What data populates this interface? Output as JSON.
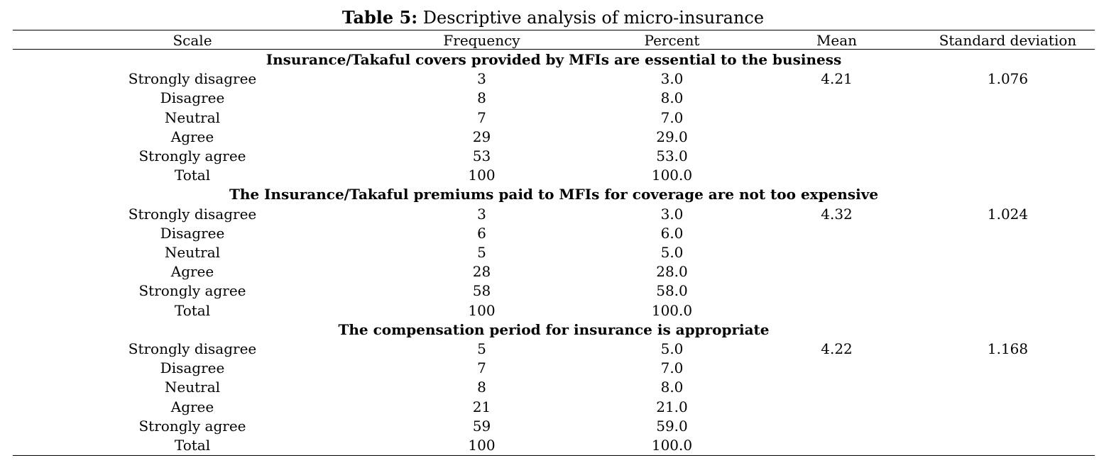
{
  "caption": {
    "label": "Table 5:",
    "text": "Descriptive analysis of micro-insurance"
  },
  "columns": [
    "Scale",
    "Frequency",
    "Percent",
    "Mean",
    "Standard deviation"
  ],
  "sections": [
    {
      "title": "Insurance/Takaful covers provided by MFIs are essential to the business",
      "rows": [
        {
          "scale": "Strongly disagree",
          "frequency": "3",
          "percent": "3.0",
          "mean": "4.21",
          "sd": "1.076"
        },
        {
          "scale": "Disagree",
          "frequency": "8",
          "percent": "8.0",
          "mean": "",
          "sd": ""
        },
        {
          "scale": "Neutral",
          "frequency": "7",
          "percent": "7.0",
          "mean": "",
          "sd": ""
        },
        {
          "scale": "Agree",
          "frequency": "29",
          "percent": "29.0",
          "mean": "",
          "sd": ""
        },
        {
          "scale": "Strongly agree",
          "frequency": "53",
          "percent": "53.0",
          "mean": "",
          "sd": ""
        },
        {
          "scale": "Total",
          "frequency": "100",
          "percent": "100.0",
          "mean": "",
          "sd": ""
        }
      ]
    },
    {
      "title": "The Insurance/Takaful premiums paid to MFIs for coverage are not too expensive",
      "rows": [
        {
          "scale": "Strongly disagree",
          "frequency": "3",
          "percent": "3.0",
          "mean": "4.32",
          "sd": "1.024"
        },
        {
          "scale": "Disagree",
          "frequency": "6",
          "percent": "6.0",
          "mean": "",
          "sd": ""
        },
        {
          "scale": "Neutral",
          "frequency": "5",
          "percent": "5.0",
          "mean": "",
          "sd": ""
        },
        {
          "scale": "Agree",
          "frequency": "28",
          "percent": "28.0",
          "mean": "",
          "sd": ""
        },
        {
          "scale": "Strongly agree",
          "frequency": "58",
          "percent": "58.0",
          "mean": "",
          "sd": ""
        },
        {
          "scale": "Total",
          "frequency": "100",
          "percent": "100.0",
          "mean": "",
          "sd": ""
        }
      ]
    },
    {
      "title": "The compensation period for insurance is appropriate",
      "rows": [
        {
          "scale": "Strongly disagree",
          "frequency": "5",
          "percent": "5.0",
          "mean": "4.22",
          "sd": "1.168"
        },
        {
          "scale": "Disagree",
          "frequency": "7",
          "percent": "7.0",
          "mean": "",
          "sd": ""
        },
        {
          "scale": "Neutral",
          "frequency": "8",
          "percent": "8.0",
          "mean": "",
          "sd": ""
        },
        {
          "scale": "Agree",
          "frequency": "21",
          "percent": "21.0",
          "mean": "",
          "sd": ""
        },
        {
          "scale": "Strongly agree",
          "frequency": "59",
          "percent": "59.0",
          "mean": "",
          "sd": ""
        },
        {
          "scale": "Total",
          "frequency": "100",
          "percent": "100.0",
          "mean": "",
          "sd": ""
        }
      ]
    }
  ]
}
